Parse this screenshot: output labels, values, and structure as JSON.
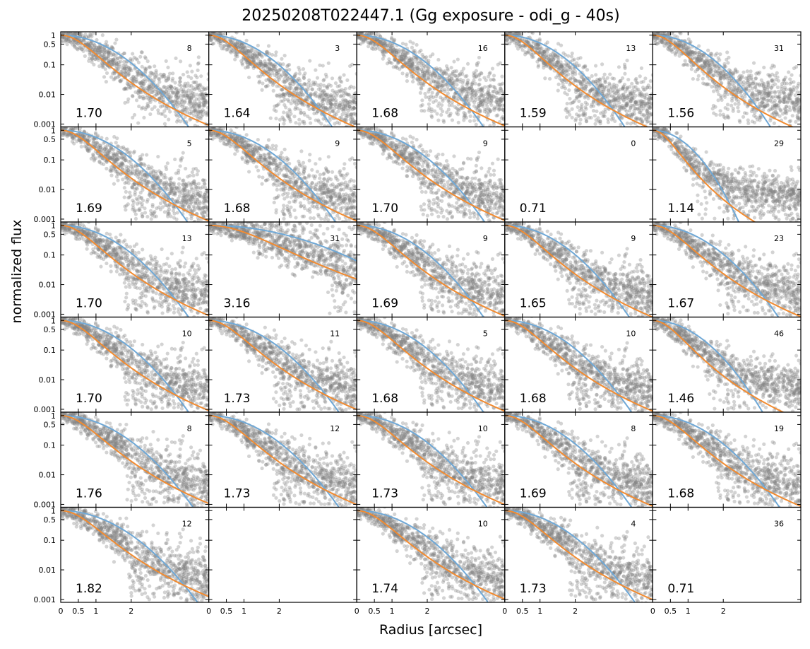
{
  "title": "20250208T022447.1 (Gg exposure - odi_g - 40s)",
  "chart_data": {
    "type": "scatter",
    "title": "20250208T022447.1 (Gg exposure - odi_g - 40s)",
    "xlabel": "Radius [arcsec]",
    "ylabel": "normalized flux",
    "rows": 6,
    "cols": 5,
    "x_tick_labels": [
      "0",
      "0.5",
      "1",
      "2"
    ],
    "y_tick_labels": [
      "1",
      "0.5",
      "0.1",
      "0.01",
      "0.001"
    ],
    "xlim": [
      0,
      4.2
    ],
    "ylim": [
      0.0008,
      1.3
    ],
    "series_colors": {
      "points": "#808080",
      "fit_blue": "#6fa8d6",
      "fit_orange": "#f28b30"
    },
    "panels": [
      {
        "fwhm": "1.70",
        "count": "8",
        "has_data": true,
        "width": 1.13,
        "tail": 1
      },
      {
        "fwhm": "1.64",
        "count": "3",
        "has_data": true,
        "width": 1.09,
        "tail": 0.6
      },
      {
        "fwhm": "1.68",
        "count": "16",
        "has_data": true,
        "width": 1.12,
        "tail": 1
      },
      {
        "fwhm": "1.59",
        "count": "13",
        "has_data": true,
        "width": 1.06,
        "tail": 0.7
      },
      {
        "fwhm": "1.56",
        "count": "31",
        "has_data": true,
        "width": 1.04,
        "tail": 1
      },
      {
        "fwhm": "1.69",
        "count": "5",
        "has_data": true,
        "width": 1.12,
        "tail": 0.7
      },
      {
        "fwhm": "1.68",
        "count": "9",
        "has_data": true,
        "width": 1.12,
        "tail": 0.7
      },
      {
        "fwhm": "1.70",
        "count": "9",
        "has_data": true,
        "width": 1.13,
        "tail": 0.7
      },
      {
        "fwhm": "0.71",
        "count": "0",
        "has_data": false,
        "width": 0.47,
        "tail": 0
      },
      {
        "fwhm": "1.14",
        "count": "29",
        "has_data": true,
        "width": 0.76,
        "tail": 2
      },
      {
        "fwhm": "1.70",
        "count": "13",
        "has_data": true,
        "width": 1.13,
        "tail": 0.7
      },
      {
        "fwhm": "3.16",
        "count": "31",
        "has_data": true,
        "width": 2.1,
        "tail": 3
      },
      {
        "fwhm": "1.69",
        "count": "9",
        "has_data": true,
        "width": 1.12,
        "tail": 0.7
      },
      {
        "fwhm": "1.65",
        "count": "9",
        "has_data": true,
        "width": 1.1,
        "tail": 0.8
      },
      {
        "fwhm": "1.67",
        "count": "23",
        "has_data": true,
        "width": 1.11,
        "tail": 1
      },
      {
        "fwhm": "1.70",
        "count": "10",
        "has_data": true,
        "width": 1.13,
        "tail": 0.7
      },
      {
        "fwhm": "1.73",
        "count": "11",
        "has_data": true,
        "width": 1.15,
        "tail": 0.8
      },
      {
        "fwhm": "1.68",
        "count": "5",
        "has_data": true,
        "width": 1.12,
        "tail": 0.7
      },
      {
        "fwhm": "1.68",
        "count": "10",
        "has_data": true,
        "width": 1.12,
        "tail": 0.8
      },
      {
        "fwhm": "1.46",
        "count": "46",
        "has_data": true,
        "width": 0.97,
        "tail": 1.5
      },
      {
        "fwhm": "1.76",
        "count": "8",
        "has_data": true,
        "width": 1.17,
        "tail": 0.7
      },
      {
        "fwhm": "1.73",
        "count": "12",
        "has_data": true,
        "width": 1.15,
        "tail": 0.7
      },
      {
        "fwhm": "1.73",
        "count": "10",
        "has_data": true,
        "width": 1.15,
        "tail": 0.7
      },
      {
        "fwhm": "1.69",
        "count": "8",
        "has_data": true,
        "width": 1.12,
        "tail": 0.7
      },
      {
        "fwhm": "1.68",
        "count": "19",
        "has_data": true,
        "width": 1.12,
        "tail": 0.7
      },
      {
        "fwhm": "1.82",
        "count": "12",
        "has_data": true,
        "width": 1.21,
        "tail": 0.7
      },
      {
        "fwhm": "",
        "count": "",
        "has_data": false,
        "width": 1.1,
        "tail": 0
      },
      {
        "fwhm": "1.74",
        "count": "10",
        "has_data": true,
        "width": 1.16,
        "tail": 0.7
      },
      {
        "fwhm": "1.73",
        "count": "4",
        "has_data": true,
        "width": 1.15,
        "tail": 0.7
      },
      {
        "fwhm": "0.71",
        "count": "36",
        "has_data": false,
        "width": 0.47,
        "tail": 0
      }
    ]
  }
}
